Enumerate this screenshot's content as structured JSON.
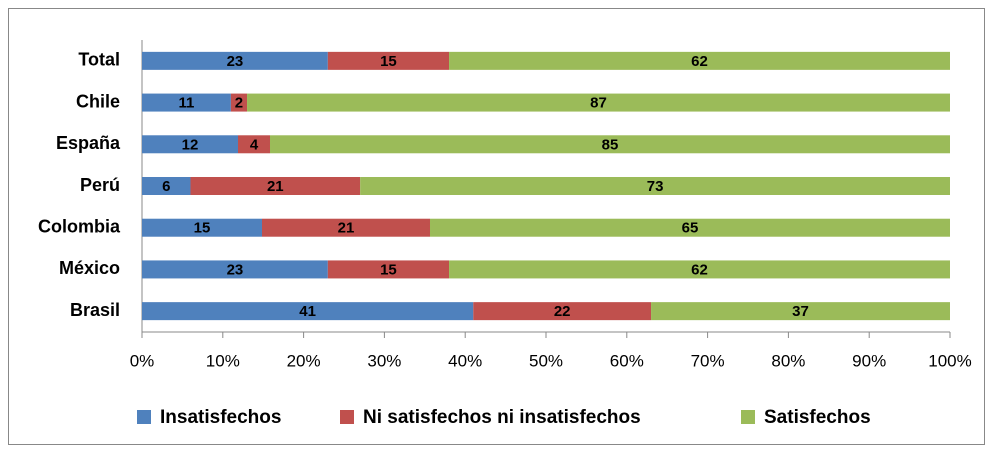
{
  "chart_data": {
    "type": "bar",
    "orientation": "horizontal",
    "stacking": "percent",
    "categories": [
      "Total",
      "Chile",
      "España",
      "Perú",
      "Colombia",
      "México",
      "Brasil"
    ],
    "series": [
      {
        "name": "Insatisfechos",
        "color": "#4f81bd",
        "values": [
          23,
          11,
          12,
          6,
          15,
          23,
          41
        ]
      },
      {
        "name": "Ni satisfechos ni insatisfechos",
        "color": "#c0504d",
        "values": [
          15,
          2,
          4,
          21,
          21,
          15,
          22
        ]
      },
      {
        "name": "Satisfechos",
        "color": "#9bbb59",
        "values": [
          62,
          87,
          85,
          73,
          65,
          62,
          37
        ]
      }
    ],
    "xlim": [
      0,
      100
    ],
    "xticks": [
      {
        "value": 0,
        "label": "0%"
      },
      {
        "value": 10,
        "label": "10%"
      },
      {
        "value": 20,
        "label": "20%"
      },
      {
        "value": 30,
        "label": "30%"
      },
      {
        "value": 40,
        "label": "40%"
      },
      {
        "value": 50,
        "label": "50%"
      },
      {
        "value": 60,
        "label": "60%"
      },
      {
        "value": 70,
        "label": "70%"
      },
      {
        "value": 80,
        "label": "80%"
      },
      {
        "value": 90,
        "label": "90%"
      },
      {
        "value": 100,
        "label": "100%"
      }
    ],
    "grid": false,
    "legend": "bottom"
  }
}
